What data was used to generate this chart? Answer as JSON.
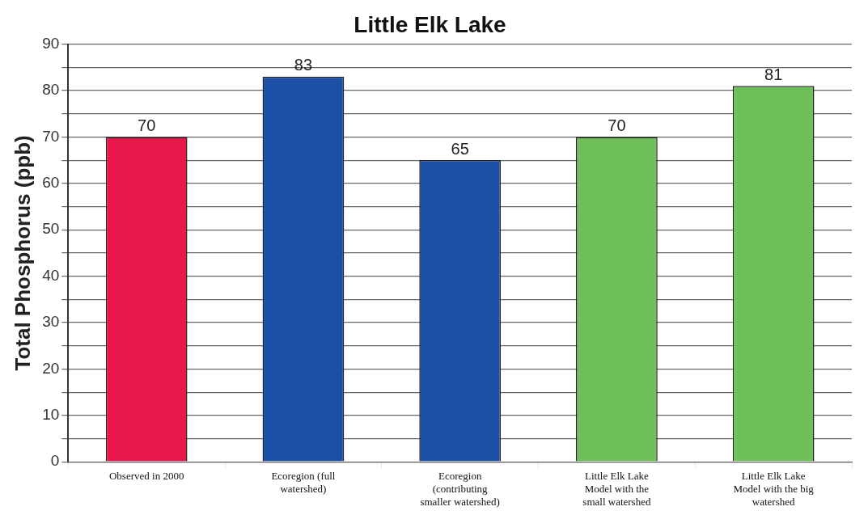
{
  "chart_data": {
    "type": "bar",
    "title": "Little Elk Lake",
    "ylabel": "Total Phosphorus (ppb)",
    "categories": [
      "Observed in 2000",
      "Ecoregion (full watershed)",
      "Ecoregion (contributing smaller watershed)",
      "Little Elk Lake Model with the small watershed",
      "Little Elk Lake Model with the big watershed"
    ],
    "values": [
      70,
      83,
      65,
      70,
      81
    ],
    "colors": [
      "#e8194a",
      "#1c4fa6",
      "#1c4fa6",
      "#6fbf5a",
      "#6fbf5a"
    ],
    "ylim": [
      0,
      90
    ],
    "yticks": [
      0,
      {
        "value": 5,
        "label": null
      },
      10,
      {
        "value": 15,
        "label": null
      },
      20,
      {
        "value": 25,
        "label": null
      },
      30,
      {
        "value": 35,
        "label": null
      },
      40,
      {
        "value": 45,
        "label": null
      },
      50,
      {
        "value": 55,
        "label": null
      },
      60,
      {
        "value": 65,
        "label": null
      },
      70,
      {
        "value": 75,
        "label": null
      },
      80,
      {
        "value": 85,
        "label": null
      },
      90
    ],
    "grid": true,
    "data_labels": true
  }
}
